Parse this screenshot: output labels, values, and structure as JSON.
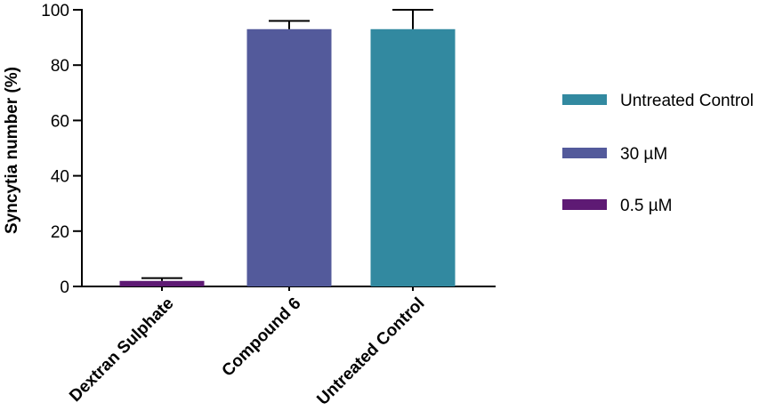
{
  "chart_data": {
    "type": "bar",
    "title": "",
    "xlabel": "",
    "ylabel": "Syncytia number (%)",
    "ylim": [
      0,
      100
    ],
    "yticks": [
      "0",
      "20",
      "40",
      "60",
      "80",
      "100"
    ],
    "grid": false,
    "legend_position": "right",
    "categories": [
      "Dextran Sulphate",
      "Compound 6",
      "Untreated Control"
    ],
    "values": [
      2,
      93,
      93
    ],
    "error_upper": [
      1,
      3,
      7
    ],
    "bar_colors": [
      "#5e1a74",
      "#535a9b",
      "#3289a0"
    ],
    "legend": [
      {
        "label": "Untreated Control",
        "color": "#3289a0"
      },
      {
        "label": "30 µM",
        "color": "#535a9b"
      },
      {
        "label": " 0.5 µM",
        "color": "#5e1a74"
      }
    ]
  }
}
